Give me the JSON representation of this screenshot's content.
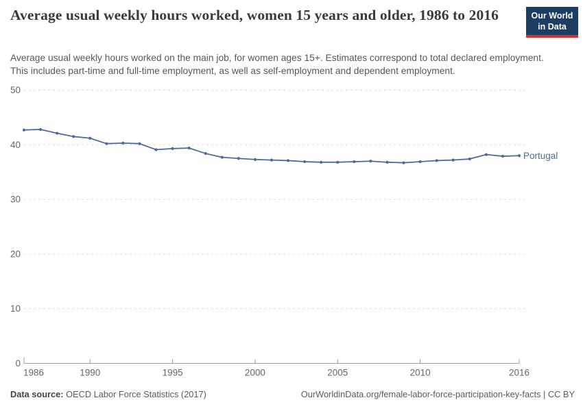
{
  "header": {
    "title": "Average usual weekly hours worked, women 15 years and older, 1986 to 2016",
    "subtitle": "Average usual weekly hours worked on the main job, for women ages 15+. Estimates correspond to total declared employment. This includes part-time and full-time employment, as well as self-employment and dependent employment.",
    "logo": {
      "line1": "Our World",
      "line2": "in Data",
      "bg": "#1d3d63",
      "accent": "#d0342c"
    }
  },
  "chart_data": {
    "type": "line",
    "title": "Average usual weekly hours worked, women 15 years and older, 1986 to 2016",
    "xlabel": "",
    "ylabel": "",
    "x": [
      1986,
      1987,
      1988,
      1989,
      1990,
      1991,
      1992,
      1993,
      1994,
      1995,
      1996,
      1997,
      1998,
      1999,
      2000,
      2001,
      2002,
      2003,
      2004,
      2005,
      2006,
      2007,
      2008,
      2009,
      2010,
      2011,
      2012,
      2013,
      2014,
      2015,
      2016
    ],
    "series": [
      {
        "name": "Portugal",
        "color": "#4C6A9D",
        "values": [
          42.7,
          42.8,
          42.1,
          41.5,
          41.2,
          40.2,
          40.3,
          40.2,
          39.1,
          39.3,
          39.4,
          38.4,
          37.7,
          37.5,
          37.3,
          37.2,
          37.1,
          36.9,
          36.8,
          36.8,
          36.9,
          37.0,
          36.8,
          36.7,
          36.9,
          37.1,
          37.2,
          37.4,
          38.2,
          37.9,
          38.0
        ]
      }
    ],
    "x_ticks": [
      1986,
      1990,
      1995,
      2000,
      2005,
      2010,
      2016
    ],
    "y_ticks": [
      0,
      10,
      20,
      30,
      40,
      50
    ],
    "xlim": [
      1986,
      2016
    ],
    "ylim": [
      0,
      50
    ],
    "grid": "horizontal-dashed",
    "legend_position": "end-of-line",
    "colors": {
      "grid": "#dcdcdc",
      "axis": "#999999",
      "tick_text": "#666666"
    }
  },
  "footer": {
    "datasource_label": "Data source:",
    "datasource_value": "OECD Labor Force Statistics (2017)",
    "link": "OurWorldinData.org/female-labor-force-participation-key-facts | CC BY"
  }
}
